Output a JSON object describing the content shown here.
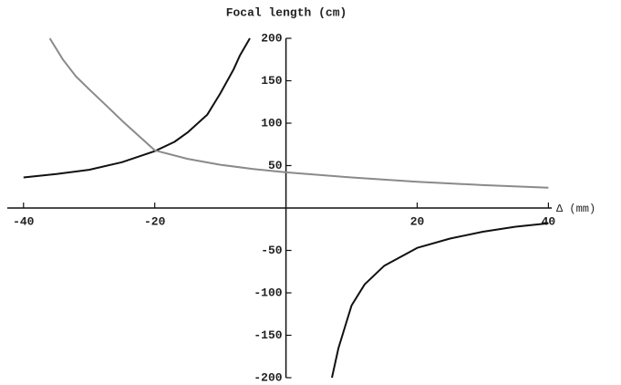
{
  "chart_data": {
    "type": "line",
    "title": "Focal length (cm)",
    "x_label": "Δ (mm)",
    "xlim": [
      -41.5,
      40.5
    ],
    "ylim": [
      -200,
      200
    ],
    "xticks": [
      -40,
      -20,
      20,
      40
    ],
    "yticks": [
      -200,
      -150,
      -100,
      -50,
      50,
      100,
      150,
      200
    ],
    "series": [
      {
        "color": "#111111",
        "x": [
          -40,
          -35,
          -30,
          -25,
          -20,
          -17,
          -15,
          -12,
          -10,
          -8,
          -7,
          -5.5,
          0,
          7,
          8,
          10,
          12,
          15,
          20,
          25,
          30,
          35,
          40
        ],
        "values": [
          36,
          40,
          45,
          54,
          67,
          78,
          89,
          110,
          135,
          163,
          180,
          200,
          null,
          -200,
          -165,
          -115,
          -90,
          -68,
          -47,
          -36,
          -28,
          -22,
          -18
        ]
      },
      {
        "color": "#8a8a8a",
        "x": [
          -36,
          -34,
          -32,
          -30,
          -27,
          -25,
          -22,
          -20,
          -15,
          -10,
          -5,
          0,
          10,
          20,
          30,
          40
        ],
        "values": [
          200,
          175,
          155,
          140,
          118,
          103,
          82,
          68,
          58,
          51,
          46,
          42,
          36,
          31,
          27,
          24
        ]
      }
    ]
  }
}
